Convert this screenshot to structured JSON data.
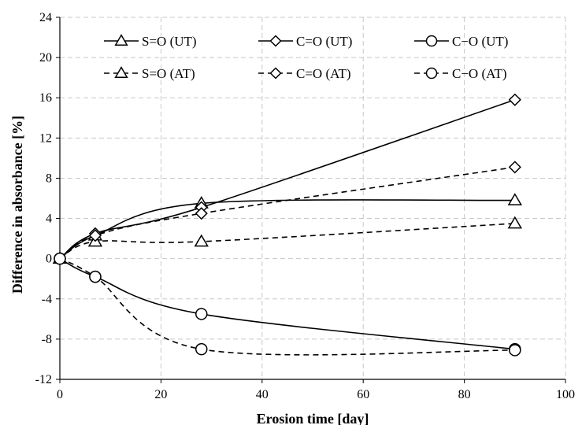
{
  "chart_data": {
    "type": "line",
    "xlabel": "Erosion time [day]",
    "ylabel": "Difference in absorbance [%]",
    "xlim": [
      0,
      100
    ],
    "ylim": [
      -12,
      24
    ],
    "xticks": [
      0,
      20,
      40,
      60,
      80,
      100
    ],
    "yticks": [
      -12,
      -8,
      -4,
      0,
      4,
      8,
      12,
      16,
      20,
      24
    ],
    "grid": true,
    "legend_position": "top",
    "series": [
      {
        "name": "S=O (UT)",
        "marker": "triangle",
        "dashed": false,
        "x": [
          0,
          7,
          28,
          90
        ],
        "y": [
          0,
          2.3,
          5.5,
          5.8
        ]
      },
      {
        "name": "C=O (UT)",
        "marker": "diamond",
        "dashed": false,
        "x": [
          0,
          7,
          28,
          90
        ],
        "y": [
          0,
          2.5,
          5.1,
          15.8
        ]
      },
      {
        "name": "C−O (UT)",
        "marker": "circle",
        "dashed": false,
        "x": [
          0,
          7,
          28,
          90
        ],
        "y": [
          0,
          -1.8,
          -5.5,
          -9.0
        ]
      },
      {
        "name": "S=O (AT)",
        "marker": "triangle",
        "dashed": true,
        "x": [
          0,
          7,
          28,
          90
        ],
        "y": [
          0,
          1.7,
          1.7,
          3.5
        ]
      },
      {
        "name": "C=O (AT)",
        "marker": "diamond",
        "dashed": true,
        "x": [
          0,
          7,
          28,
          90
        ],
        "y": [
          0,
          2.3,
          4.5,
          9.1
        ]
      },
      {
        "name": "C−O (AT)",
        "marker": "circle",
        "dashed": true,
        "x": [
          0,
          7,
          28,
          90
        ],
        "y": [
          0,
          -1.8,
          -9.0,
          -9.1
        ]
      }
    ]
  }
}
